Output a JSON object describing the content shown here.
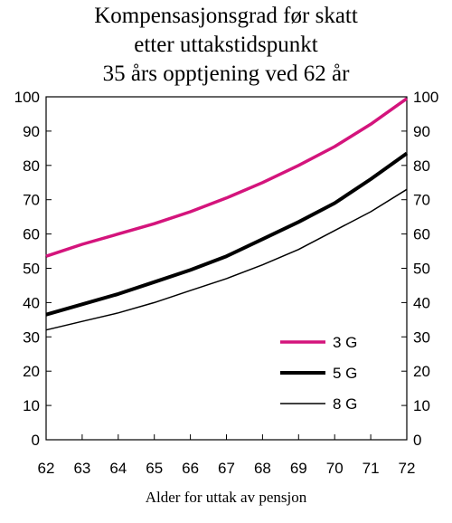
{
  "chart_data": {
    "type": "line",
    "title": [
      "Kompensasjonsgrad før skatt",
      "etter uttakstidspunkt",
      "35 års opptjening ved 62 år"
    ],
    "xlabel": "Alder for uttak av pensjon",
    "ylabel": "",
    "x": [
      62,
      63,
      64,
      65,
      66,
      67,
      68,
      69,
      70,
      71,
      72
    ],
    "xlim": [
      62,
      72
    ],
    "ylim": [
      0,
      100
    ],
    "yticks": [
      0,
      10,
      20,
      30,
      40,
      50,
      60,
      70,
      80,
      90,
      100
    ],
    "grid": false,
    "legend_position": "bottom-right",
    "series": [
      {
        "name": "3 G",
        "color": "#d4147c",
        "stroke": 3.5,
        "values": [
          53.5,
          57,
          60,
          63,
          66.5,
          70.5,
          75,
          80,
          85.5,
          92,
          99.5
        ]
      },
      {
        "name": "5 G",
        "color": "#000000",
        "stroke": 4,
        "values": [
          36.5,
          39.5,
          42.5,
          46,
          49.5,
          53.5,
          58.5,
          63.5,
          69,
          76,
          83.5
        ]
      },
      {
        "name": "8 G",
        "color": "#000000",
        "stroke": 1.5,
        "values": [
          32,
          34.5,
          37,
          40,
          43.5,
          47,
          51,
          55.5,
          61,
          66.5,
          73
        ]
      }
    ]
  }
}
